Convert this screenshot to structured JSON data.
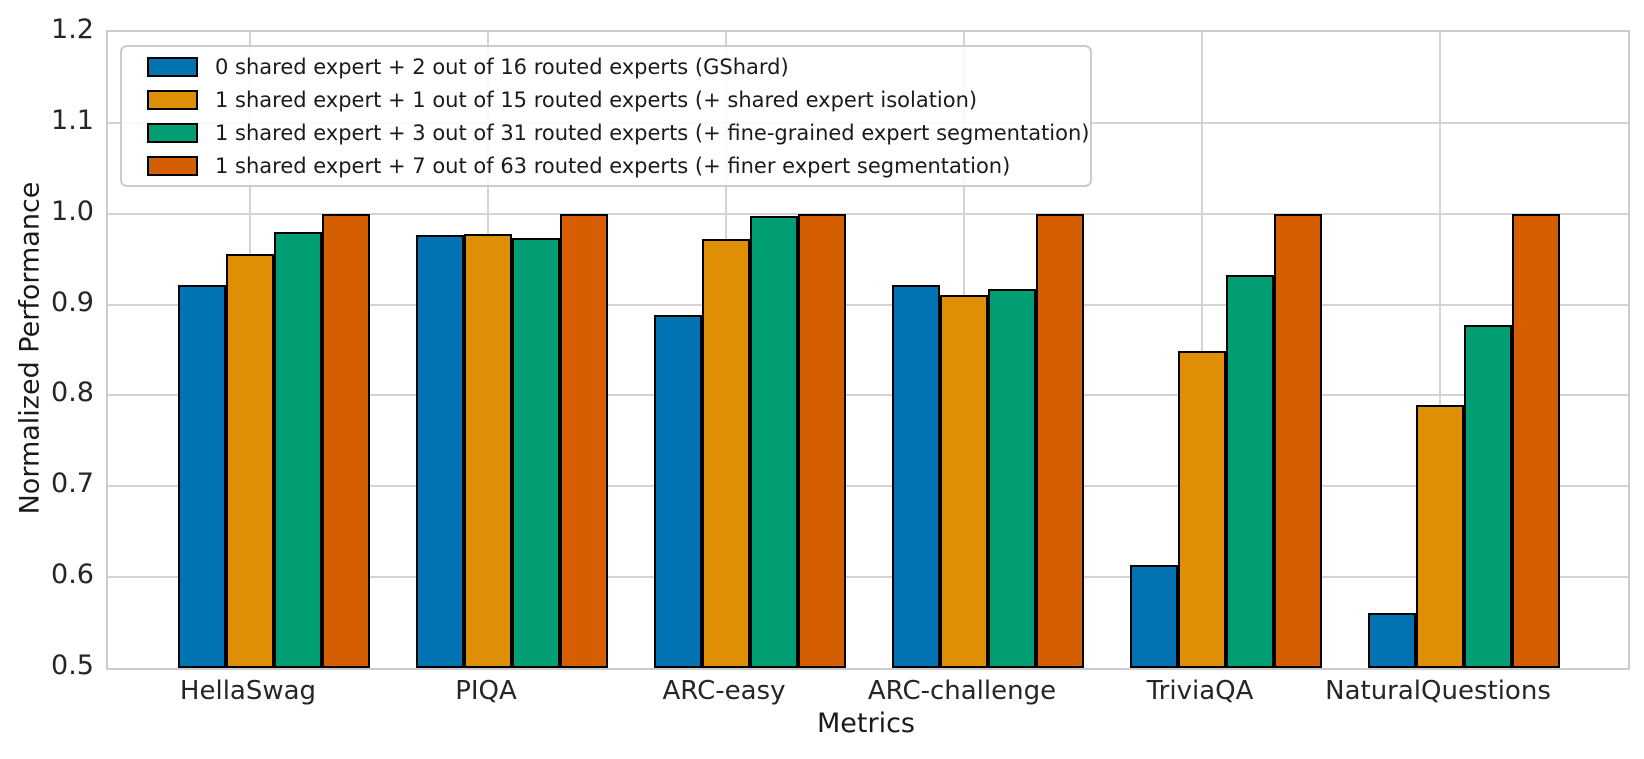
{
  "chart_data": {
    "type": "bar",
    "title": "",
    "xlabel": "Metrics",
    "ylabel": "Normalized Performance",
    "ylim": [
      0.5,
      1.2
    ],
    "yticks": [
      "0.5",
      "0.6",
      "0.7",
      "0.8",
      "0.9",
      "1.0",
      "1.1",
      "1.2"
    ],
    "grid": true,
    "legend_position": "upper left",
    "bar_edge_color": "#000000",
    "categories": [
      "HellaSwag",
      "PIQA",
      "ARC-easy",
      "ARC-challenge",
      "TriviaQA",
      "NaturalQuestions"
    ],
    "series": [
      {
        "name": "0 shared expert + 2 out of 16 routed experts (GShard)",
        "color": "#0173B2",
        "values": [
          0.922,
          0.977,
          0.889,
          0.921,
          0.613,
          0.561
        ]
      },
      {
        "name": "1 shared expert + 1 out of 15 routed experts (+ shared expert isolation)",
        "color": "#DE8F05",
        "values": [
          0.956,
          0.978,
          0.972,
          0.911,
          0.849,
          0.789
        ]
      },
      {
        "name": "1 shared expert + 3 out of 31 routed experts (+ fine-grained expert segmentation)",
        "color": "#029E73",
        "values": [
          0.98,
          0.973,
          0.998,
          0.917,
          0.933,
          0.877
        ]
      },
      {
        "name": "1 shared expert + 7 out of 63 routed experts (+ finer expert segmentation)",
        "color": "#D55E00",
        "values": [
          1.0,
          1.0,
          1.0,
          1.0,
          1.0,
          1.0
        ]
      }
    ]
  }
}
